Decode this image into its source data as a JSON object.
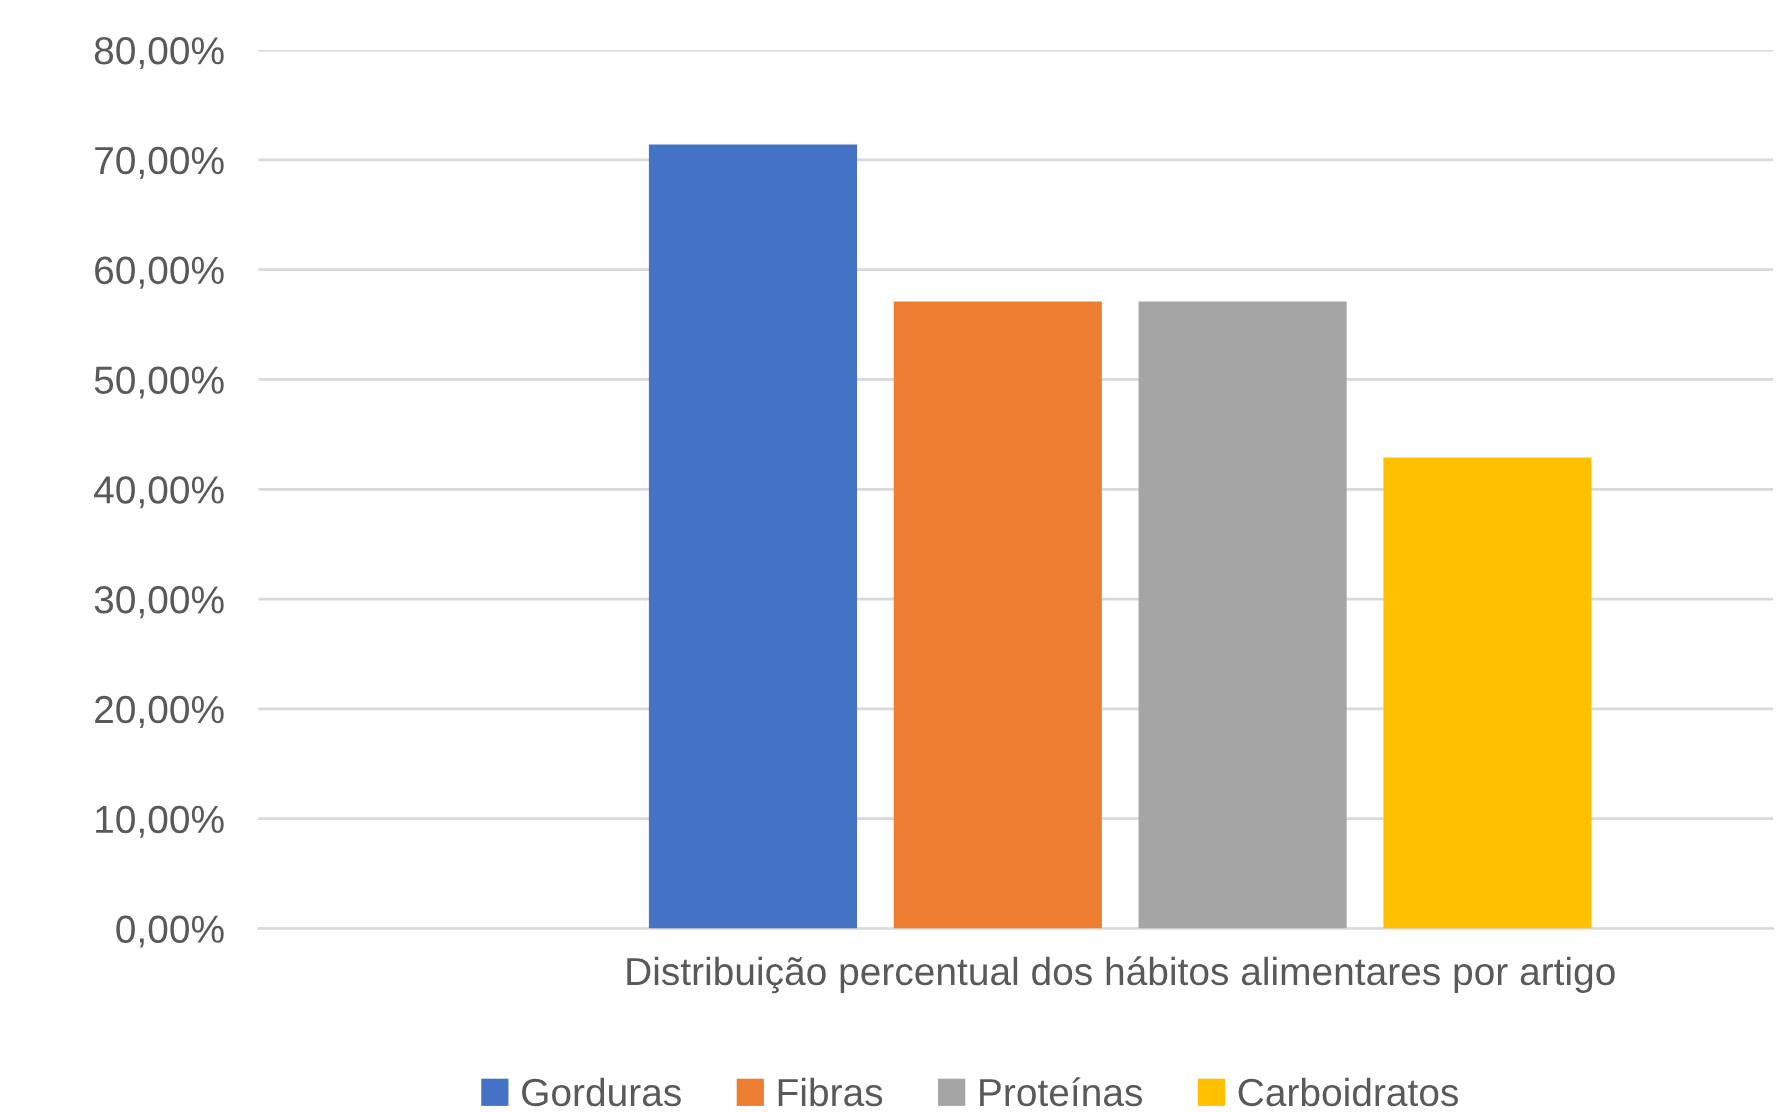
{
  "chart_data": {
    "type": "bar",
    "categories": [
      "Distribuição percentual dos hábitos alimentares por artigo"
    ],
    "series": [
      {
        "name": "Gorduras",
        "color": "#4472c4",
        "values": [
          71.4
        ]
      },
      {
        "name": "Fibras",
        "color": "#ed7d31",
        "values": [
          57.1
        ]
      },
      {
        "name": "Proteínas",
        "color": "#a5a5a5",
        "values": [
          57.1
        ]
      },
      {
        "name": "Carboidratos",
        "color": "#ffc000",
        "values": [
          42.9
        ]
      }
    ],
    "ylim": [
      0,
      80
    ],
    "yticks": [
      {
        "value": 0,
        "label": "0,00%"
      },
      {
        "value": 10,
        "label": "10,00%"
      },
      {
        "value": 20,
        "label": "20,00%"
      },
      {
        "value": 30,
        "label": "30,00%"
      },
      {
        "value": 40,
        "label": "40,00%"
      },
      {
        "value": 50,
        "label": "50,00%"
      },
      {
        "value": 60,
        "label": "60,00%"
      },
      {
        "value": 70,
        "label": "70,00%"
      },
      {
        "value": 80,
        "label": "80,00%"
      }
    ],
    "grid": "y",
    "legend": "bottom"
  }
}
